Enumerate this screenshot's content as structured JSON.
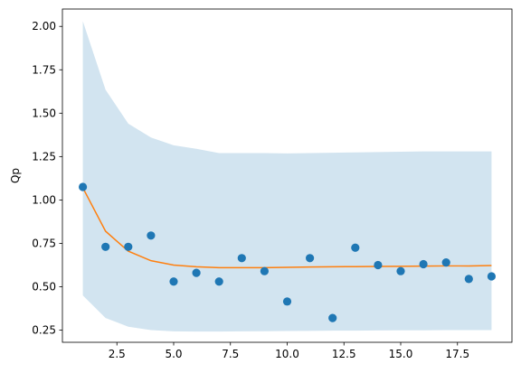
{
  "chart_data": {
    "type": "scatter",
    "title": "",
    "xlabel": "",
    "ylabel": "Qp",
    "xlim": [
      0.1,
      19.9
    ],
    "ylim": [
      0.18,
      2.1
    ],
    "grid": false,
    "x_ticks": [
      2.5,
      5.0,
      7.5,
      10.0,
      12.5,
      15.0,
      17.5
    ],
    "x_tick_labels": [
      "2.5",
      "5.0",
      "7.5",
      "10.0",
      "12.5",
      "15.0",
      "17.5"
    ],
    "y_ticks": [
      0.25,
      0.5,
      0.75,
      1.0,
      1.25,
      1.5,
      1.75,
      2.0
    ],
    "y_tick_labels": [
      "0.25",
      "0.50",
      "0.75",
      "1.00",
      "1.25",
      "1.50",
      "1.75",
      "2.00"
    ],
    "series": [
      {
        "type": "scatter",
        "color": "#1f77b4",
        "x": [
          1,
          2,
          3,
          4,
          5,
          6,
          7,
          8,
          9,
          10,
          11,
          12,
          13,
          14,
          15,
          16,
          17,
          18,
          19
        ],
        "y": [
          1.075,
          0.73,
          0.73,
          0.795,
          0.53,
          0.58,
          0.53,
          0.665,
          0.59,
          0.415,
          0.665,
          0.32,
          0.725,
          0.625,
          0.59,
          0.63,
          0.64,
          0.545,
          0.56
        ]
      },
      {
        "type": "line",
        "color": "#ff7f0e",
        "x": [
          1,
          2,
          3,
          4,
          5,
          6,
          7,
          8,
          9,
          10,
          11,
          12,
          13,
          14,
          15,
          16,
          17,
          18,
          19
        ],
        "y": [
          1.07,
          0.82,
          0.705,
          0.65,
          0.625,
          0.615,
          0.61,
          0.61,
          0.61,
          0.612,
          0.614,
          0.615,
          0.616,
          0.617,
          0.618,
          0.619,
          0.62,
          0.62,
          0.622
        ]
      },
      {
        "type": "band",
        "color": "#1f77b4",
        "opacity": 0.2,
        "x": [
          1,
          2,
          3,
          4,
          5,
          6,
          7,
          8,
          9,
          10,
          11,
          12,
          13,
          14,
          15,
          16,
          17,
          18,
          19
        ],
        "upper": [
          2.03,
          1.635,
          1.44,
          1.36,
          1.315,
          1.295,
          1.27,
          1.27,
          1.27,
          1.268,
          1.27,
          1.272,
          1.274,
          1.276,
          1.278,
          1.28,
          1.28,
          1.28,
          1.28
        ],
        "lower": [
          0.45,
          0.32,
          0.27,
          0.25,
          0.243,
          0.242,
          0.242,
          0.243,
          0.244,
          0.245,
          0.246,
          0.247,
          0.247,
          0.248,
          0.249,
          0.249,
          0.25,
          0.25,
          0.25
        ]
      }
    ]
  }
}
